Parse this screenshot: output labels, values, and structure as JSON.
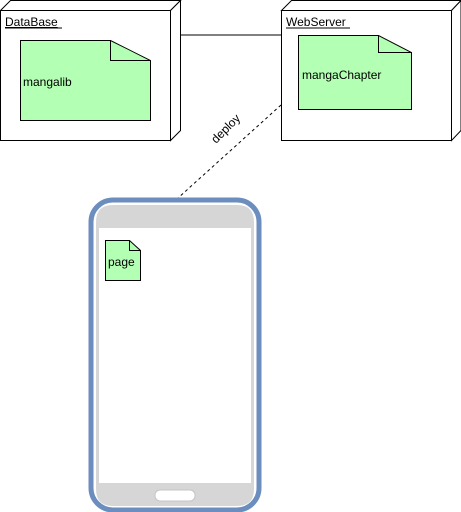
{
  "nodes": {
    "database": {
      "label": "DataBase"
    },
    "webserver": {
      "label": "WebServer"
    }
  },
  "artifacts": {
    "mangalib": {
      "label": "mangalib"
    },
    "mangaChapter": {
      "label": "mangaChapter"
    },
    "page": {
      "label": "page"
    }
  },
  "edges": {
    "deploy": {
      "label": "deploy"
    }
  },
  "colors": {
    "artifact_fill": "#b3ffb3",
    "phone_frame": "#6c8ebf",
    "phone_bezel": "#d6d6d6",
    "line": "#000000"
  }
}
